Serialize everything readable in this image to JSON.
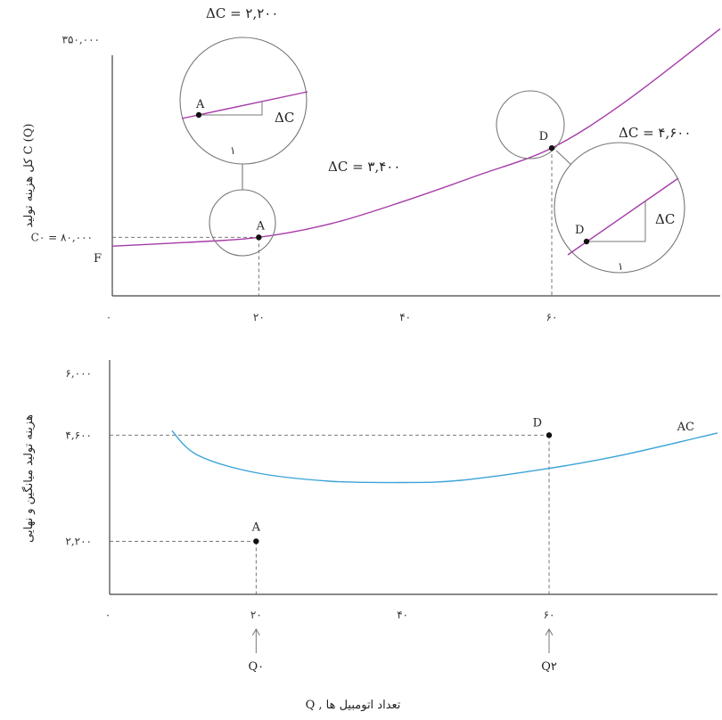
{
  "chart_data": [
    {
      "type": "line",
      "ylabel": "کل هزینه تولید C (Q)",
      "x_ticks": [
        "۰",
        "۲۰",
        "۴۰",
        "۶۰"
      ],
      "x_tick_values": [
        0,
        20,
        40,
        60
      ],
      "y_ticks": [
        {
          "label": "۳۵۰,۰۰۰",
          "value": 350000
        },
        {
          "label": "C۰ = ۸۰,۰۰۰",
          "value": 80000
        }
      ],
      "fixed_cost_label": "F",
      "fixed_cost_value": 68000,
      "xlim": [
        0,
        83
      ],
      "ylim": [
        0,
        380000
      ],
      "series": [
        {
          "color": "#a63ba8",
          "x": [
            0,
            10,
            20,
            30,
            40,
            50,
            60,
            70,
            83
          ],
          "y": [
            68000,
            73000,
            80000,
            99000,
            130000,
            165000,
            202000,
            265000,
            365000
          ]
        }
      ],
      "points": [
        {
          "label": "A",
          "x": 20,
          "y": 80000
        },
        {
          "label": "D",
          "x": 60,
          "y": 202000
        }
      ],
      "annotations": {
        "slope_mid": "ΔC = ۳,۴۰۰",
        "slope_A": "ΔC = ۲,۲۰۰",
        "slope_D": "ΔC = ۴,۶۰۰",
        "delta_c": "ΔC",
        "one": "۱"
      }
    },
    {
      "type": "line",
      "ylabel": "هزینه تولید میانگین و نهایی",
      "xlabel": "Q , تعداد اتومبیل ها",
      "x_ticks": [
        "۰",
        "۲۰",
        "۴۰",
        "۶۰"
      ],
      "x_tick_values": [
        0,
        20,
        40,
        60
      ],
      "y_ticks": [
        {
          "label": "۶,۰۰۰",
          "value": 6000
        },
        {
          "label": "۴,۶۰۰",
          "value": 4600
        },
        {
          "label": "۲,۲۰۰",
          "value": 2200
        }
      ],
      "xlim": [
        0,
        83
      ],
      "ylim": [
        1000,
        6300
      ],
      "series": [
        {
          "name": "AC",
          "color": "#3aa3d8",
          "x": [
            8.5,
            12,
            20,
            30,
            40,
            48,
            60,
            70,
            83
          ],
          "y": [
            4700,
            4150,
            3750,
            3560,
            3530,
            3580,
            3850,
            4150,
            4650
          ]
        }
      ],
      "points": [
        {
          "label": "A",
          "x": 20,
          "y": 2200
        },
        {
          "label": "D",
          "x": 60,
          "y": 4600
        }
      ],
      "q_markers": [
        {
          "label": "Q۰",
          "x": 20
        },
        {
          "label": "Q۲",
          "x": 60
        }
      ]
    }
  ]
}
